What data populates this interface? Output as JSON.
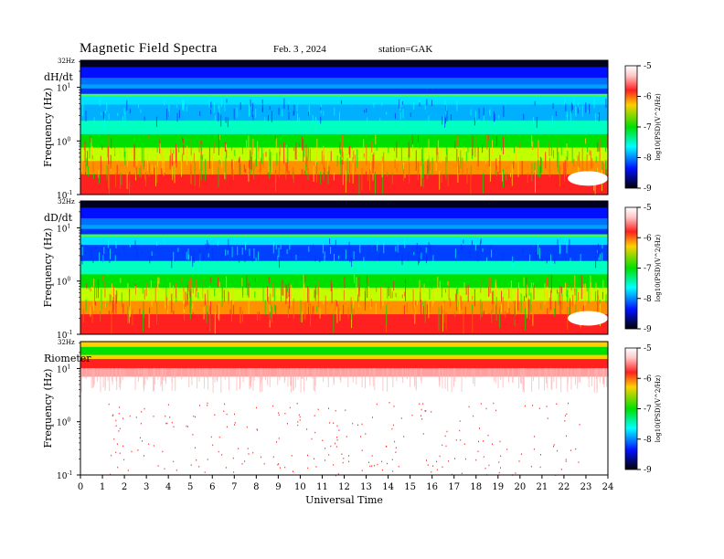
{
  "header": {
    "title": "Magnetic  Field  Spectra",
    "date": "Feb. 3  , 2024",
    "station": "station=GAK"
  },
  "chart_data": {
    "type": "heatmap",
    "xlabel": "Universal Time",
    "x_ticks": [
      "0",
      "1",
      "2",
      "3",
      "4",
      "5",
      "6",
      "7",
      "8",
      "9",
      "10",
      "11",
      "12",
      "13",
      "14",
      "15",
      "16",
      "17",
      "18",
      "19",
      "20",
      "21",
      "22",
      "23",
      "24"
    ],
    "xlim": [
      0,
      24
    ],
    "ylabel": "Frequency (Hz)",
    "y_scale": "log",
    "ylim": [
      0.1,
      32
    ],
    "colorbar": {
      "label": "log10(PSD)(V^2/Hz)",
      "ticks": [
        "-5",
        "-6",
        "-7",
        "-8",
        "-9"
      ],
      "range": [
        -9,
        -5
      ]
    },
    "panels": [
      {
        "name": "dH/dt",
        "top_label": "32Hz",
        "y_ticks": [
          "10^1",
          "10^0",
          "10^-1"
        ]
      },
      {
        "name": "dD/dt",
        "top_label": "32Hz",
        "y_ticks": [
          "10^1",
          "10^0",
          "10^-1"
        ]
      },
      {
        "name": "Riometer",
        "top_label": "32Hz",
        "y_ticks": [
          "10^1",
          "10^0",
          "10^-1"
        ]
      }
    ]
  }
}
